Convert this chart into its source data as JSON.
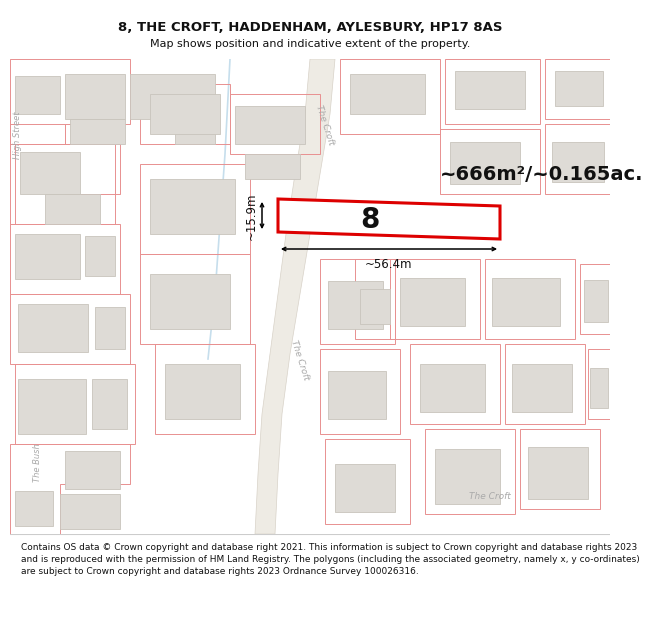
{
  "title": "8, THE CROFT, HADDENHAM, AYLESBURY, HP17 8AS",
  "subtitle": "Map shows position and indicative extent of the property.",
  "footer": "Contains OS data © Crown copyright and database right 2021. This information is subject to Crown copyright and database rights 2023 and is reproduced with the permission of HM Land Registry. The polygons (including the associated geometry, namely x, y co-ordinates) are subject to Crown copyright and database rights 2023 Ordnance Survey 100026316.",
  "area_label": "~666m²/~0.165ac.",
  "width_label": "~56.4m",
  "height_label": "~15.9m",
  "property_number": "8",
  "map_bg": "#f8f7f5",
  "building_fill": "#dedbd6",
  "building_edge": "#c8c4bc",
  "plot_line_color": "#e89090",
  "property_border": "#dd0000",
  "property_fill": "#ffffff",
  "road_fill": "#eeebe4",
  "road_edge": "#d8d2c8",
  "text_color": "#111111",
  "road_label_color": "#aaaaaa",
  "dim_color": "#111111",
  "title_fontsize": 9.5,
  "subtitle_fontsize": 8,
  "footer_fontsize": 6.5,
  "area_fontsize": 14,
  "dim_fontsize": 8.5,
  "prop_num_fontsize": 20
}
